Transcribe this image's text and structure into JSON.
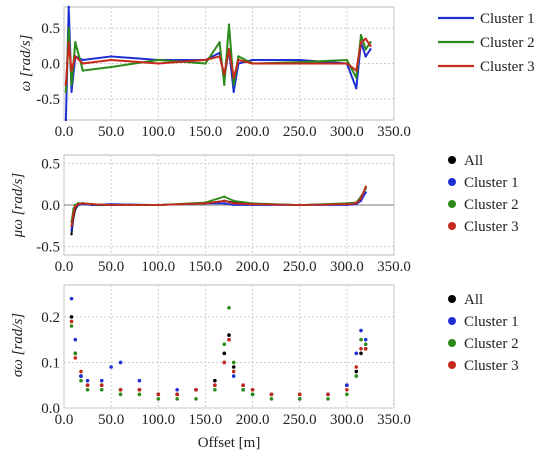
{
  "figure": {
    "xlabel": "Offset [m]",
    "x_ticks": [
      "0.0",
      "50.0",
      "100.0",
      "150.0",
      "200.0",
      "250.0",
      "300.0",
      "350.0"
    ]
  },
  "chart_data": [
    {
      "type": "line",
      "ylabel": "ω [rad/s]",
      "xlim": [
        0,
        350
      ],
      "ylim": [
        -0.8,
        0.8
      ],
      "y_ticks": [
        "0.5",
        "0.0",
        "-0.5"
      ],
      "grid": true,
      "legend_position": "right",
      "series": [
        {
          "name": "Cluster 1",
          "color": "#1f2fd4",
          "x": [
            2,
            5,
            8,
            12,
            20,
            50,
            100,
            150,
            165,
            170,
            175,
            180,
            185,
            200,
            250,
            300,
            310,
            315,
            320,
            325
          ],
          "y": [
            -0.8,
            0.8,
            -0.4,
            0.1,
            0.05,
            0.1,
            0.05,
            0.05,
            0.15,
            -0.2,
            0.2,
            -0.4,
            0.0,
            0.05,
            0.05,
            0.0,
            -0.35,
            0.3,
            0.1,
            0.2
          ]
        },
        {
          "name": "Cluster 2",
          "color": "#2b8a1a",
          "x": [
            2,
            5,
            8,
            12,
            20,
            50,
            100,
            150,
            165,
            170,
            175,
            180,
            185,
            200,
            250,
            300,
            310,
            315,
            320,
            325
          ],
          "y": [
            -0.4,
            0.5,
            -0.3,
            0.3,
            -0.1,
            -0.05,
            0.05,
            0.0,
            0.3,
            -0.3,
            0.55,
            -0.3,
            0.1,
            0.0,
            0.02,
            0.05,
            -0.2,
            0.4,
            0.2,
            0.3
          ]
        },
        {
          "name": "Cluster 3",
          "color": "#c42a1a",
          "x": [
            2,
            5,
            8,
            12,
            20,
            50,
            100,
            150,
            165,
            170,
            175,
            180,
            185,
            200,
            250,
            300,
            310,
            315,
            320,
            325
          ],
          "y": [
            -0.3,
            0.3,
            -0.1,
            0.1,
            0.0,
            0.05,
            0.0,
            0.05,
            0.1,
            -0.15,
            0.2,
            -0.2,
            0.05,
            0.0,
            0.0,
            0.0,
            -0.1,
            0.3,
            0.35,
            0.25
          ]
        }
      ]
    },
    {
      "type": "line",
      "ylabel": "μω [rad/s]",
      "xlim": [
        0,
        350
      ],
      "ylim": [
        -0.6,
        0.6
      ],
      "y_ticks": [
        "0.5",
        "0.0",
        "-0.5"
      ],
      "grid": true,
      "legend_position": "right",
      "series": [
        {
          "name": "All",
          "color": "#000000",
          "x": [
            8,
            10,
            12,
            15,
            20,
            30,
            50,
            100,
            150,
            170,
            180,
            200,
            250,
            300,
            310,
            315,
            320
          ],
          "y": [
            -0.35,
            -0.15,
            -0.05,
            0.0,
            0.02,
            0.0,
            0.0,
            0.0,
            0.02,
            0.05,
            0.03,
            0.01,
            0.0,
            0.01,
            0.02,
            0.1,
            0.2
          ]
        },
        {
          "name": "Cluster 1",
          "color": "#1f2fd4",
          "x": [
            8,
            10,
            12,
            15,
            20,
            30,
            50,
            100,
            150,
            170,
            180,
            200,
            250,
            300,
            310,
            315,
            320
          ],
          "y": [
            -0.3,
            -0.1,
            -0.03,
            0.0,
            0.01,
            0.0,
            0.01,
            0.0,
            0.02,
            0.02,
            0.0,
            0.0,
            0.0,
            0.0,
            0.01,
            0.05,
            0.15
          ]
        },
        {
          "name": "Cluster 2",
          "color": "#2b8a1a",
          "x": [
            8,
            10,
            12,
            15,
            20,
            30,
            50,
            100,
            150,
            170,
            180,
            200,
            250,
            300,
            310,
            315,
            320
          ],
          "y": [
            -0.2,
            -0.05,
            0.0,
            0.02,
            0.02,
            0.01,
            0.0,
            0.0,
            0.03,
            0.1,
            0.05,
            0.02,
            0.0,
            0.02,
            0.03,
            0.1,
            0.2
          ]
        },
        {
          "name": "Cluster 3",
          "color": "#c42a1a",
          "x": [
            8,
            10,
            12,
            15,
            20,
            30,
            50,
            100,
            150,
            170,
            180,
            200,
            250,
            300,
            310,
            315,
            320
          ],
          "y": [
            -0.25,
            -0.1,
            -0.02,
            0.01,
            0.02,
            0.01,
            0.0,
            0.0,
            0.02,
            0.05,
            0.02,
            0.01,
            0.0,
            0.01,
            0.02,
            0.08,
            0.22
          ]
        }
      ]
    },
    {
      "type": "scatter",
      "ylabel": "σω [rad/s]",
      "xlim": [
        0,
        350
      ],
      "ylim": [
        0,
        0.27
      ],
      "y_ticks": [
        "0.2",
        "0.1",
        "0.0"
      ],
      "grid": true,
      "legend_position": "right",
      "series": [
        {
          "name": "All",
          "color": "#000000",
          "x": [
            8,
            12,
            18,
            25,
            40,
            60,
            80,
            100,
            120,
            140,
            160,
            170,
            175,
            180,
            190,
            200,
            220,
            250,
            280,
            300,
            310,
            315,
            320
          ],
          "y": [
            0.2,
            0.12,
            0.07,
            0.05,
            0.05,
            0.04,
            0.04,
            0.03,
            0.03,
            0.04,
            0.06,
            0.12,
            0.16,
            0.09,
            0.05,
            0.04,
            0.03,
            0.03,
            0.03,
            0.05,
            0.08,
            0.12,
            0.13
          ]
        },
        {
          "name": "Cluster 1",
          "color": "#1f2fd4",
          "x": [
            8,
            12,
            18,
            25,
            40,
            50,
            60,
            80,
            100,
            120,
            140,
            160,
            170,
            175,
            180,
            190,
            200,
            220,
            250,
            280,
            300,
            310,
            315,
            320
          ],
          "y": [
            0.24,
            0.15,
            0.07,
            0.06,
            0.06,
            0.09,
            0.1,
            0.06,
            0.03,
            0.04,
            0.04,
            0.05,
            0.1,
            0.15,
            0.07,
            0.04,
            0.03,
            0.03,
            0.02,
            0.03,
            0.05,
            0.12,
            0.17,
            0.15
          ]
        },
        {
          "name": "Cluster 2",
          "color": "#2b8a1a",
          "x": [
            8,
            12,
            18,
            25,
            40,
            60,
            80,
            100,
            120,
            140,
            160,
            170,
            175,
            180,
            190,
            200,
            220,
            250,
            280,
            300,
            310,
            315,
            320
          ],
          "y": [
            0.18,
            0.12,
            0.06,
            0.04,
            0.04,
            0.03,
            0.03,
            0.02,
            0.02,
            0.02,
            0.04,
            0.14,
            0.22,
            0.1,
            0.04,
            0.03,
            0.02,
            0.02,
            0.02,
            0.03,
            0.07,
            0.15,
            0.14
          ]
        },
        {
          "name": "Cluster 3",
          "color": "#c42a1a",
          "x": [
            8,
            12,
            18,
            25,
            40,
            60,
            80,
            100,
            120,
            140,
            160,
            170,
            175,
            180,
            190,
            200,
            220,
            250,
            280,
            300,
            310,
            315,
            320
          ],
          "y": [
            0.19,
            0.11,
            0.08,
            0.05,
            0.05,
            0.04,
            0.04,
            0.03,
            0.03,
            0.04,
            0.05,
            0.1,
            0.15,
            0.08,
            0.05,
            0.04,
            0.03,
            0.03,
            0.03,
            0.04,
            0.09,
            0.13,
            0.13
          ]
        }
      ]
    }
  ]
}
